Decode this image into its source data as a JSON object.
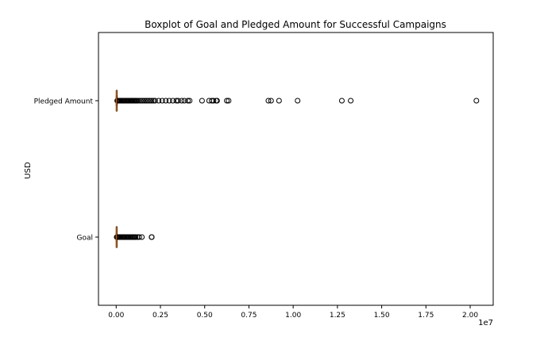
{
  "chart_data": {
    "type": "boxplot",
    "orientation": "horizontal",
    "title": "Boxplot of Goal and Pledged Amount for Successful Campaigns",
    "xlabel": "",
    "ylabel": "USD",
    "x_scale_note": "1e7",
    "xlim": [
      -1000000,
      21300000
    ],
    "xticks": [
      0,
      2500000,
      5000000,
      7500000,
      10000000,
      12500000,
      15000000,
      17500000,
      20000000
    ],
    "xtick_labels": [
      "0.00",
      "0.25",
      "0.50",
      "0.75",
      "1.00",
      "1.25",
      "1.50",
      "1.75",
      "2.00"
    ],
    "grid": false,
    "categories": [
      "Goal",
      "Pledged Amount"
    ],
    "series": [
      {
        "name": "Goal",
        "box": {
          "whisker_low": 0,
          "q1": 2000,
          "median": 5000,
          "q3": 10000,
          "whisker_high": 25000
        },
        "outliers": [
          30000,
          45000,
          60000,
          80000,
          100000,
          130000,
          160000,
          200000,
          250000,
          300000,
          350000,
          400000,
          450000,
          500000,
          550000,
          600000,
          650000,
          700000,
          750000,
          800000,
          850000,
          900000,
          950000,
          1000000,
          1050000,
          1100000,
          1200000,
          1300000,
          1450000,
          2000000,
          2010000
        ]
      },
      {
        "name": "Pledged Amount",
        "box": {
          "whisker_low": 1,
          "q1": 4000,
          "median": 9000,
          "q3": 25000,
          "whisker_high": 55000
        },
        "outliers": [
          60000,
          80000,
          100000,
          130000,
          160000,
          200000,
          250000,
          300000,
          350000,
          400000,
          450000,
          500000,
          550000,
          600000,
          650000,
          700000,
          750000,
          800000,
          850000,
          900000,
          950000,
          1000000,
          1050000,
          1100000,
          1150000,
          1200000,
          1300000,
          1400000,
          1500000,
          1600000,
          1700000,
          1800000,
          1900000,
          2000000,
          2100000,
          2200000,
          2400000,
          2600000,
          2800000,
          3000000,
          3200000,
          3400000,
          3500000,
          3700000,
          3850000,
          4050000,
          4150000,
          4850000,
          5250000,
          5400000,
          5500000,
          5650000,
          5700000,
          6250000,
          6350000,
          8600000,
          8750000,
          9200000,
          10250000,
          12750000,
          13250000,
          20350000
        ]
      }
    ],
    "colors": {
      "median": "#c85a00",
      "outline": "#000000",
      "background": "#ffffff"
    }
  }
}
